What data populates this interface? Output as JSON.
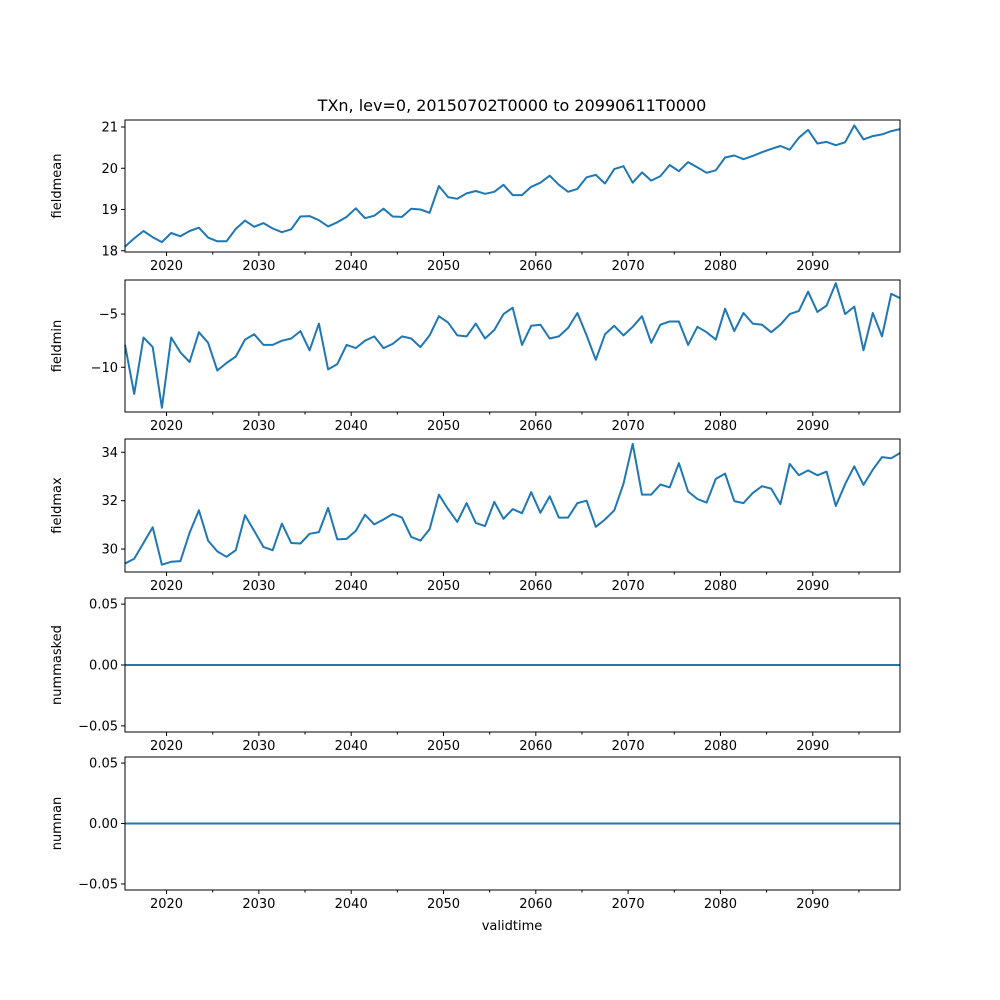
{
  "chart_data": {
    "type": "line",
    "title": "TXn, lev=0, 20150702T0000 to 20990611T0000",
    "xlabel": "validtime",
    "xlim": [
      2015.5,
      2099.45
    ],
    "x_tick_labels": [
      "2020",
      "2030",
      "2040",
      "2050",
      "2060",
      "2070",
      "2080",
      "2090"
    ],
    "series_color": "#1f77b4",
    "x": [
      2015.5,
      2016.5,
      2017.5,
      2018.5,
      2019.5,
      2020.5,
      2021.5,
      2022.5,
      2023.5,
      2024.5,
      2025.5,
      2026.5,
      2027.5,
      2028.5,
      2029.5,
      2030.5,
      2031.5,
      2032.5,
      2033.5,
      2034.5,
      2035.5,
      2036.5,
      2037.5,
      2038.5,
      2039.5,
      2040.5,
      2041.5,
      2042.5,
      2043.5,
      2044.5,
      2045.5,
      2046.5,
      2047.5,
      2048.5,
      2049.5,
      2050.5,
      2051.5,
      2052.5,
      2053.5,
      2054.5,
      2055.5,
      2056.5,
      2057.5,
      2058.5,
      2059.5,
      2060.5,
      2061.5,
      2062.5,
      2063.5,
      2064.5,
      2065.5,
      2066.5,
      2067.5,
      2068.5,
      2069.5,
      2070.5,
      2071.5,
      2072.5,
      2073.5,
      2074.5,
      2075.5,
      2076.5,
      2077.5,
      2078.5,
      2079.5,
      2080.5,
      2081.5,
      2082.5,
      2083.5,
      2084.5,
      2085.5,
      2086.5,
      2087.5,
      2088.5,
      2089.5,
      2090.5,
      2091.5,
      2092.5,
      2093.5,
      2094.5,
      2095.5,
      2096.5,
      2097.5,
      2098.5,
      2099.45
    ],
    "panels": [
      {
        "ylabel": "fieldmean",
        "ylim": [
          17.97,
          21.17
        ],
        "yticks": [
          18,
          19,
          20,
          21
        ],
        "ytick_labels": [
          "18",
          "19",
          "20",
          "21"
        ],
        "values": [
          18.1,
          18.3,
          18.48,
          18.33,
          18.21,
          18.43,
          18.35,
          18.48,
          18.56,
          18.32,
          18.23,
          18.23,
          18.53,
          18.73,
          18.58,
          18.67,
          18.54,
          18.45,
          18.52,
          18.83,
          18.84,
          18.74,
          18.59,
          18.69,
          18.82,
          19.03,
          18.79,
          18.85,
          19.02,
          18.83,
          18.82,
          19.02,
          19.0,
          18.92,
          19.57,
          19.3,
          19.26,
          19.39,
          19.45,
          19.38,
          19.43,
          19.6,
          19.35,
          19.35,
          19.55,
          19.65,
          19.82,
          19.6,
          19.43,
          19.5,
          19.78,
          19.84,
          19.63,
          19.98,
          20.05,
          19.65,
          19.9,
          19.7,
          19.81,
          20.08,
          19.93,
          20.15,
          20.02,
          19.89,
          19.95,
          20.26,
          20.31,
          20.22,
          20.3,
          20.39,
          20.47,
          20.54,
          20.45,
          20.74,
          20.93,
          20.6,
          20.64,
          20.56,
          20.63,
          21.04,
          20.7,
          20.78,
          20.82,
          20.9,
          20.95
        ]
      },
      {
        "ylabel": "fieldmin",
        "ylim": [
          -14.2,
          -1.8
        ],
        "yticks": [
          -10,
          -5
        ],
        "ytick_labels": [
          "−10",
          "−5"
        ],
        "values": [
          -7.9,
          -12.5,
          -7.2,
          -8.1,
          -13.8,
          -7.2,
          -8.6,
          -9.5,
          -6.7,
          -7.7,
          -10.3,
          -9.6,
          -9.0,
          -7.4,
          -6.9,
          -7.9,
          -7.9,
          -7.5,
          -7.3,
          -6.6,
          -8.4,
          -5.9,
          -10.2,
          -9.7,
          -7.9,
          -8.2,
          -7.5,
          -7.1,
          -8.2,
          -7.8,
          -7.1,
          -7.3,
          -8.1,
          -7.0,
          -5.2,
          -5.8,
          -7.0,
          -7.1,
          -5.9,
          -7.3,
          -6.5,
          -5.0,
          -4.4,
          -7.9,
          -6.1,
          -6.0,
          -7.3,
          -7.1,
          -6.3,
          -4.9,
          -7.0,
          -9.3,
          -6.9,
          -6.1,
          -7.0,
          -6.2,
          -5.2,
          -7.7,
          -6.0,
          -5.7,
          -5.7,
          -7.9,
          -6.2,
          -6.7,
          -7.4,
          -4.5,
          -6.6,
          -4.9,
          -5.9,
          -6.0,
          -6.7,
          -6.0,
          -5.0,
          -4.7,
          -2.9,
          -4.8,
          -4.2,
          -2.1,
          -5.0,
          -4.3,
          -8.4,
          -4.9,
          -7.1,
          -3.1,
          -3.5
        ]
      },
      {
        "ylabel": "fieldmax",
        "ylim": [
          29.05,
          34.55
        ],
        "yticks": [
          30,
          32,
          34
        ],
        "ytick_labels": [
          "30",
          "32",
          "34"
        ],
        "values": [
          29.4,
          29.6,
          30.25,
          30.9,
          29.35,
          29.47,
          29.5,
          30.67,
          31.6,
          30.35,
          29.9,
          29.68,
          29.95,
          31.4,
          30.75,
          30.08,
          29.95,
          31.05,
          30.25,
          30.23,
          30.63,
          30.7,
          31.7,
          30.4,
          30.42,
          30.75,
          31.42,
          31.02,
          31.22,
          31.45,
          31.3,
          30.5,
          30.35,
          30.82,
          32.25,
          31.65,
          31.12,
          31.9,
          31.08,
          30.95,
          31.95,
          31.25,
          31.65,
          31.48,
          32.35,
          31.5,
          32.18,
          31.3,
          31.3,
          31.9,
          32.0,
          30.92,
          31.22,
          31.6,
          32.7,
          34.35,
          32.25,
          32.25,
          32.67,
          32.55,
          33.55,
          32.38,
          32.07,
          31.92,
          32.9,
          33.12,
          31.98,
          31.9,
          32.32,
          32.6,
          32.5,
          31.85,
          33.52,
          33.05,
          33.25,
          33.05,
          33.2,
          31.78,
          32.68,
          33.42,
          32.65,
          33.28,
          33.8,
          33.75,
          33.97
        ]
      },
      {
        "ylabel": "nummasked",
        "ylim": [
          -0.055,
          0.055
        ],
        "yticks": [
          -0.05,
          0.0,
          0.05
        ],
        "ytick_labels": [
          "−0.05",
          "0.00",
          "0.05"
        ],
        "values": [
          0,
          0
        ]
      },
      {
        "ylabel": "numnan",
        "ylim": [
          -0.055,
          0.055
        ],
        "yticks": [
          -0.05,
          0.0,
          0.05
        ],
        "ytick_labels": [
          "−0.05",
          "0.00",
          "0.05"
        ],
        "values": [
          0,
          0
        ]
      }
    ]
  }
}
